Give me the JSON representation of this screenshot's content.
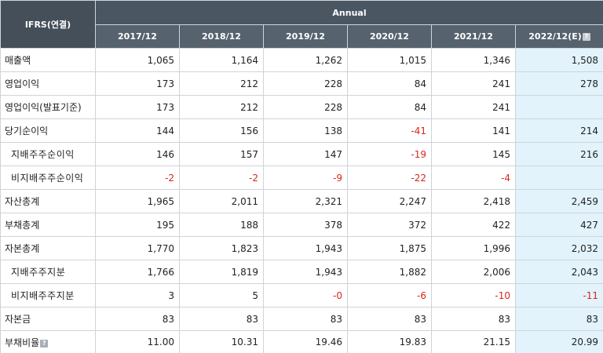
{
  "header": {
    "corner_label": "IFRS(연결)",
    "group_label": "Annual",
    "periods": [
      "2017/12",
      "2018/12",
      "2019/12",
      "2020/12",
      "2021/12",
      "2022/12(E)"
    ],
    "help_glyph": "?"
  },
  "colors": {
    "header_bg": "#4a5662",
    "estimate_bg": "#e2f3fb",
    "negative": "#d9261c"
  },
  "rows": [
    {
      "label": "매출액",
      "sub": false,
      "values": [
        "1,065",
        "1,164",
        "1,262",
        "1,015",
        "1,346",
        "1,508"
      ]
    },
    {
      "label": "영업이익",
      "sub": false,
      "values": [
        "173",
        "212",
        "228",
        "84",
        "241",
        "278"
      ]
    },
    {
      "label": "영업이익(발표기준)",
      "sub": false,
      "values": [
        "173",
        "212",
        "228",
        "84",
        "241",
        ""
      ]
    },
    {
      "label": "당기순이익",
      "sub": false,
      "values": [
        "144",
        "156",
        "138",
        "-41",
        "141",
        "214"
      ]
    },
    {
      "label": "지배주주순이익",
      "sub": true,
      "values": [
        "146",
        "157",
        "147",
        "-19",
        "145",
        "216"
      ]
    },
    {
      "label": "비지배주주순이익",
      "sub": true,
      "values": [
        "-2",
        "-2",
        "-9",
        "-22",
        "-4",
        ""
      ]
    },
    {
      "label": "자산총계",
      "sub": false,
      "values": [
        "1,965",
        "2,011",
        "2,321",
        "2,247",
        "2,418",
        "2,459"
      ]
    },
    {
      "label": "부채총계",
      "sub": false,
      "values": [
        "195",
        "188",
        "378",
        "372",
        "422",
        "427"
      ]
    },
    {
      "label": "자본총계",
      "sub": false,
      "values": [
        "1,770",
        "1,823",
        "1,943",
        "1,875",
        "1,996",
        "2,032"
      ]
    },
    {
      "label": "지배주주지분",
      "sub": true,
      "values": [
        "1,766",
        "1,819",
        "1,943",
        "1,882",
        "2,006",
        "2,043"
      ]
    },
    {
      "label": "비지배주주지분",
      "sub": true,
      "values": [
        "3",
        "5",
        "-0",
        "-6",
        "-10",
        "-11"
      ]
    },
    {
      "label": "자본금",
      "sub": false,
      "values": [
        "83",
        "83",
        "83",
        "83",
        "83",
        "83"
      ]
    },
    {
      "label": "부채비율",
      "sub": false,
      "help": true,
      "values": [
        "11.00",
        "10.31",
        "19.46",
        "19.83",
        "21.15",
        "20.99"
      ]
    }
  ]
}
